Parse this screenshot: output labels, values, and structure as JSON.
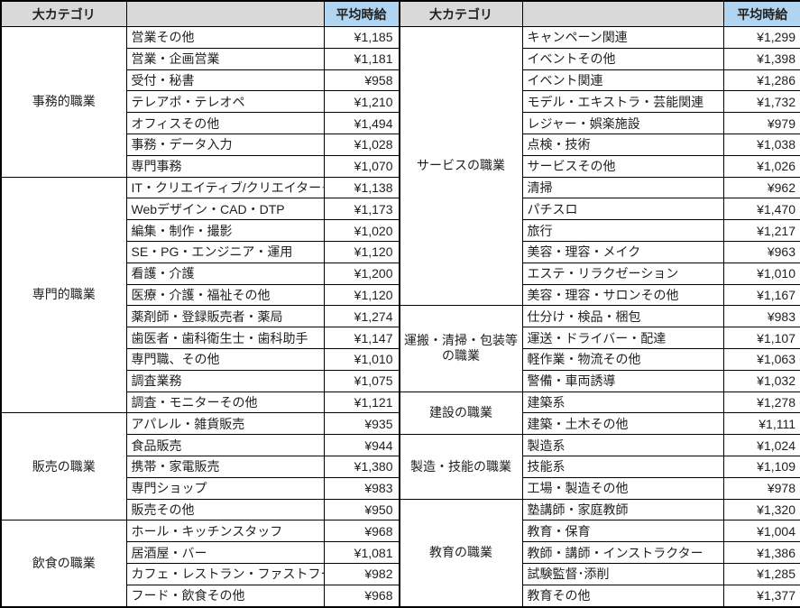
{
  "header": {
    "category_label": "大カテゴリ",
    "value_label": "平均時給"
  },
  "colors": {
    "header_gray": "#D9D9D9",
    "header_blue": "#B1D5F0",
    "grid_border": "#000000",
    "text": "#1f1f1f"
  },
  "currency_prefix": "¥",
  "tables": [
    {
      "name": "left-table",
      "groups": [
        {
          "category": "事務的職業",
          "rows": [
            {
              "label": "営業その他",
              "value": "¥1,185"
            },
            {
              "label": "営業・企画営業",
              "value": "¥1,181"
            },
            {
              "label": "受付・秘書",
              "value": "¥958"
            },
            {
              "label": "テレアポ・テレオペ",
              "value": "¥1,210"
            },
            {
              "label": "オフィスその他",
              "value": "¥1,494"
            },
            {
              "label": "事務・データ入力",
              "value": "¥1,028"
            },
            {
              "label": "専門事務",
              "value": "¥1,070"
            }
          ]
        },
        {
          "category": "専門的職業",
          "rows": [
            {
              "label": "IT・クリエイティブ/クリエイターその他",
              "value": "¥1,138"
            },
            {
              "label": "Webデザイン・CAD・DTP",
              "value": "¥1,173"
            },
            {
              "label": "編集・制作・撮影",
              "value": "¥1,020"
            },
            {
              "label": "SE・PG・エンジニア・運用",
              "value": "¥1,120"
            },
            {
              "label": "看護・介護",
              "value": "¥1,200"
            },
            {
              "label": "医療・介護・福祉その他",
              "value": "¥1,120"
            },
            {
              "label": "薬剤師・登録販売者・薬局",
              "value": "¥1,274"
            },
            {
              "label": "歯医者・歯科衛生士・歯科助手",
              "value": "¥1,147"
            },
            {
              "label": "専門職、その他",
              "value": "¥1,010"
            },
            {
              "label": "調査業務",
              "value": "¥1,075"
            },
            {
              "label": "調査・モニターその他",
              "value": "¥1,121"
            }
          ]
        },
        {
          "category": "販売の職業",
          "rows": [
            {
              "label": "アパレル・雑貨販売",
              "value": "¥935"
            },
            {
              "label": "食品販売",
              "value": "¥944"
            },
            {
              "label": "携帯・家電販売",
              "value": "¥1,380"
            },
            {
              "label": "専門ショップ",
              "value": "¥983"
            },
            {
              "label": "販売その他",
              "value": "¥950"
            }
          ]
        },
        {
          "category": "飲食の職業",
          "rows": [
            {
              "label": "ホール・キッチンスタッフ",
              "value": "¥968"
            },
            {
              "label": "居酒屋・バー",
              "value": "¥1,081"
            },
            {
              "label": "カフェ・レストラン・ファストフード",
              "value": "¥982"
            },
            {
              "label": "フード・飲食その他",
              "value": "¥968"
            }
          ]
        }
      ]
    },
    {
      "name": "right-table",
      "groups": [
        {
          "category": "サービスの職業",
          "rows": [
            {
              "label": "キャンペーン関連",
              "value": "¥1,299"
            },
            {
              "label": "イベントその他",
              "value": "¥1,398"
            },
            {
              "label": "イベント関連",
              "value": "¥1,286"
            },
            {
              "label": "モデル・エキストラ・芸能関連",
              "value": "¥1,732"
            },
            {
              "label": "レジャー・娯楽施設",
              "value": "¥979"
            },
            {
              "label": "点検・技術",
              "value": "¥1,038"
            },
            {
              "label": "サービスその他",
              "value": "¥1,026"
            },
            {
              "label": "清掃",
              "value": "¥962"
            },
            {
              "label": "パチスロ",
              "value": "¥1,470"
            },
            {
              "label": "旅行",
              "value": "¥1,217"
            },
            {
              "label": "美容・理容・メイク",
              "value": "¥963"
            },
            {
              "label": "エステ・リラクゼーション",
              "value": "¥1,010"
            },
            {
              "label": "美容・理容・サロンその他",
              "value": "¥1,167"
            }
          ]
        },
        {
          "category": "運搬・清掃・包装等の職業",
          "rows": [
            {
              "label": "仕分け・検品・梱包",
              "value": "¥983"
            },
            {
              "label": "運送・ドライバー・配達",
              "value": "¥1,107"
            },
            {
              "label": "軽作業・物流その他",
              "value": "¥1,063"
            },
            {
              "label": "警備・車両誘導",
              "value": "¥1,032"
            }
          ]
        },
        {
          "category": "建設の職業",
          "rows": [
            {
              "label": "建築系",
              "value": "¥1,278"
            },
            {
              "label": "建築・土木その他",
              "value": "¥1,111"
            }
          ]
        },
        {
          "category": "製造・技能の職業",
          "rows": [
            {
              "label": "製造系",
              "value": "¥1,024"
            },
            {
              "label": "技能系",
              "value": "¥1,109"
            },
            {
              "label": "工場・製造その他",
              "value": "¥978"
            }
          ]
        },
        {
          "category": "教育の職業",
          "rows": [
            {
              "label": "塾講師・家庭教師",
              "value": "¥1,320"
            },
            {
              "label": "教育・保育",
              "value": "¥1,004"
            },
            {
              "label": "教師・講師・インストラクター",
              "value": "¥1,386"
            },
            {
              "label": "試験監督･添削",
              "value": "¥1,285"
            },
            {
              "label": "教育その他",
              "value": "¥1,377"
            }
          ]
        }
      ]
    }
  ]
}
